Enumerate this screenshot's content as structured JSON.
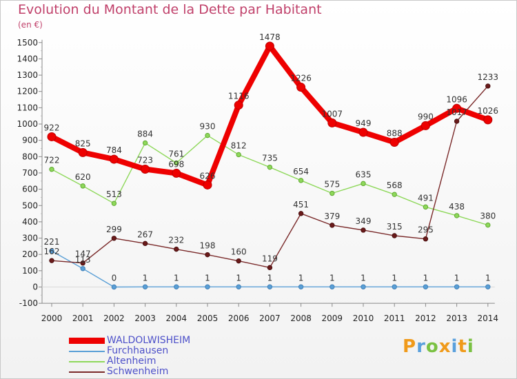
{
  "title": "Evolution du Montant de la Dette par Habitant",
  "unit": "(en €)",
  "logo": "Proxiti",
  "chart_data": {
    "type": "line",
    "x": [
      "2000",
      "2001",
      "2002",
      "2003",
      "2004",
      "2005",
      "2006",
      "2007",
      "2008",
      "2009",
      "2010",
      "2011",
      "2012",
      "2013",
      "2014"
    ],
    "ylim": [
      -100,
      1500
    ],
    "yticks": [
      -100,
      0,
      100,
      200,
      300,
      400,
      500,
      600,
      700,
      800,
      900,
      1000,
      1100,
      1200,
      1300,
      1400,
      1500
    ],
    "grid": false,
    "legend_position": "bottom-left",
    "series": [
      {
        "name": "WALDOLWISHEIM",
        "color": "#ee0000",
        "values": [
          922,
          825,
          784,
          723,
          698,
          626,
          1116,
          1478,
          1226,
          1007,
          949,
          888,
          990,
          1096,
          1026
        ]
      },
      {
        "name": "Furchhausen",
        "color": "#5a9fd6",
        "values": [
          221,
          113,
          0,
          1,
          1,
          1,
          1,
          1,
          1,
          1,
          1,
          1,
          1,
          1,
          1
        ]
      },
      {
        "name": "Altenheim",
        "color": "#8ed85a",
        "values": [
          722,
          620,
          513,
          884,
          761,
          930,
          812,
          735,
          654,
          575,
          635,
          568,
          491,
          438,
          380
        ]
      },
      {
        "name": "Schwenheim",
        "color": "#7a2a2a",
        "values": [
          162,
          147,
          299,
          267,
          232,
          198,
          160,
          119,
          451,
          379,
          349,
          315,
          295,
          1017,
          1233
        ]
      }
    ]
  }
}
